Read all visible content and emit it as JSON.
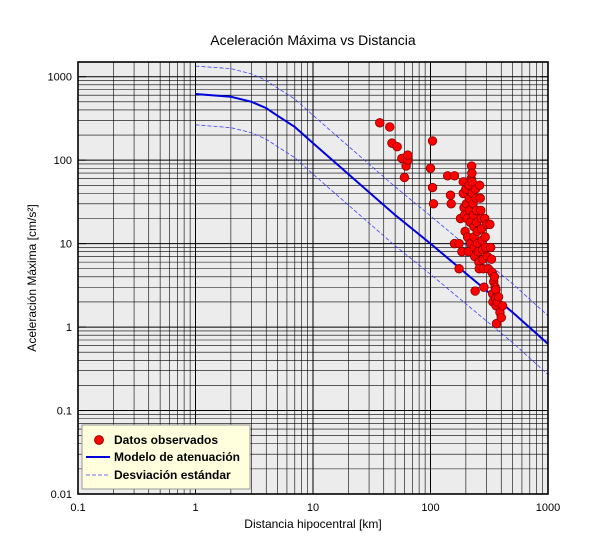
{
  "chart_data": {
    "type": "scatter",
    "title": "Aceleración Máxima vs Distancia",
    "xlabel": "Distancia hipocentral [km]",
    "ylabel": "Aceleración Máxima [cm/s²]",
    "x_scale": "log",
    "y_scale": "log",
    "xlim": [
      0.1,
      1000
    ],
    "ylim": [
      0.01,
      1500
    ],
    "grid": true,
    "x_ticks": [
      "0.1",
      "1",
      "10",
      "100",
      "1000"
    ],
    "y_ticks": [
      "0.01",
      "0.1",
      "1",
      "10",
      "100",
      "1000"
    ],
    "legend_position": "bottom-left",
    "colors": {
      "points": "#ff0000",
      "model": "#0000dd",
      "deviation": "#4040ff",
      "legend_bg": "#ffffdd",
      "plot_bg": "#ececec"
    },
    "series": [
      {
        "name": "Datos observados",
        "kind": "points",
        "points": [
          [
            37,
            280
          ],
          [
            45,
            250
          ],
          [
            47,
            160
          ],
          [
            52,
            145
          ],
          [
            57,
            105
          ],
          [
            60,
            62
          ],
          [
            62,
            85
          ],
          [
            64,
            100
          ],
          [
            64,
            115
          ],
          [
            100,
            80
          ],
          [
            104,
            170
          ],
          [
            104,
            47
          ],
          [
            106,
            30
          ],
          [
            140,
            65
          ],
          [
            148,
            38
          ],
          [
            150,
            30
          ],
          [
            160,
            65
          ],
          [
            160,
            10
          ],
          [
            175,
            10
          ],
          [
            175,
            5
          ],
          [
            180,
            20
          ],
          [
            185,
            8
          ],
          [
            190,
            55
          ],
          [
            190,
            40
          ],
          [
            193,
            27
          ],
          [
            195,
            22
          ],
          [
            197,
            14
          ],
          [
            200,
            45
          ],
          [
            202,
            30
          ],
          [
            205,
            20
          ],
          [
            207,
            12
          ],
          [
            210,
            8
          ],
          [
            212,
            50
          ],
          [
            214,
            35
          ],
          [
            216,
            25
          ],
          [
            218,
            18
          ],
          [
            220,
            10
          ],
          [
            222,
            60
          ],
          [
            224,
            85
          ],
          [
            225,
            70
          ],
          [
            226,
            55
          ],
          [
            228,
            40
          ],
          [
            230,
            30
          ],
          [
            232,
            22
          ],
          [
            234,
            16
          ],
          [
            235,
            12
          ],
          [
            236,
            9
          ],
          [
            238,
            7
          ],
          [
            240,
            2.7
          ],
          [
            242,
            45
          ],
          [
            244,
            35
          ],
          [
            246,
            25
          ],
          [
            248,
            18
          ],
          [
            250,
            14
          ],
          [
            252,
            10
          ],
          [
            255,
            8
          ],
          [
            258,
            6
          ],
          [
            260,
            5
          ],
          [
            262,
            50
          ],
          [
            265,
            35
          ],
          [
            268,
            25
          ],
          [
            270,
            20
          ],
          [
            272,
            15
          ],
          [
            275,
            11
          ],
          [
            278,
            8.5
          ],
          [
            280,
            6.5
          ],
          [
            282,
            5
          ],
          [
            285,
            3
          ],
          [
            290,
            20
          ],
          [
            292,
            12
          ],
          [
            295,
            9
          ],
          [
            300,
            17
          ],
          [
            305,
            7
          ],
          [
            310,
            5
          ],
          [
            320,
            17
          ],
          [
            325,
            9
          ],
          [
            330,
            6.5
          ],
          [
            335,
            4.5
          ],
          [
            338,
            2.5
          ],
          [
            340,
            2
          ],
          [
            345,
            3.5
          ],
          [
            350,
            4
          ],
          [
            355,
            3
          ],
          [
            358,
            2.2
          ],
          [
            360,
            2.8
          ],
          [
            362,
            1.8
          ],
          [
            365,
            1.1
          ],
          [
            370,
            2
          ],
          [
            380,
            2.3
          ],
          [
            390,
            1.5
          ],
          [
            400,
            1.3
          ],
          [
            410,
            1.8
          ]
        ]
      },
      {
        "name": "Modelo de atenuación",
        "kind": "line",
        "points": [
          [
            1,
            620
          ],
          [
            2,
            575
          ],
          [
            3,
            500
          ],
          [
            4,
            420
          ],
          [
            5,
            340
          ],
          [
            7,
            250
          ],
          [
            10,
            160
          ],
          [
            20,
            68
          ],
          [
            50,
            22
          ],
          [
            100,
            10
          ],
          [
            200,
            4.4
          ],
          [
            500,
            1.5
          ],
          [
            1000,
            0.63
          ]
        ]
      },
      {
        "name": "Desviación estándar",
        "kind": "dashed",
        "points": [
          [
            1,
            1340
          ],
          [
            2,
            1250
          ],
          [
            3,
            1080
          ],
          [
            4,
            900
          ],
          [
            5,
            730
          ],
          [
            7,
            540
          ],
          [
            10,
            345
          ],
          [
            20,
            147
          ],
          [
            50,
            48
          ],
          [
            100,
            21.5
          ],
          [
            200,
            9.5
          ],
          [
            500,
            3.3
          ],
          [
            1000,
            1.37
          ]
        ]
      },
      {
        "kind": "dashed",
        "points": [
          [
            1,
            265
          ],
          [
            2,
            245
          ],
          [
            3,
            213
          ],
          [
            4,
            178
          ],
          [
            5,
            145
          ],
          [
            7,
            107
          ],
          [
            10,
            68
          ],
          [
            20,
            29
          ],
          [
            50,
            9.4
          ],
          [
            100,
            4.3
          ],
          [
            200,
            1.9
          ],
          [
            500,
            0.65
          ],
          [
            1000,
            0.27
          ]
        ]
      }
    ]
  }
}
